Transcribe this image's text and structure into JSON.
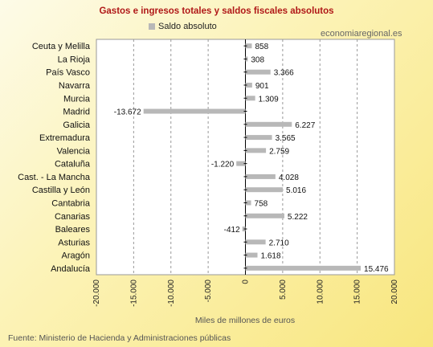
{
  "chart_data": {
    "type": "bar",
    "orientation": "horizontal",
    "title": "Gastos e ingresos totales y saldos fiscales absolutos",
    "xlabel": "Miles de millones de euros",
    "categories": [
      "Ceuta y Melilla",
      "La Rioja",
      "País Vasco",
      "Navarra",
      "Murcia",
      "Madrid",
      "Galicia",
      "Extremadura",
      "Valencia",
      "Cataluña",
      "Cast. - La Mancha",
      "Castilla y León",
      "Cantabria",
      "Canarias",
      "Baleares",
      "Asturias",
      "Aragón",
      "Andalucía"
    ],
    "series": [
      {
        "name": "Saldo absoluto",
        "color": "#b8b8b8",
        "values": [
          858,
          308,
          3366,
          901,
          1309,
          -13672,
          6227,
          3565,
          2759,
          -1220,
          4028,
          5016,
          758,
          5222,
          -412,
          2710,
          1618,
          15476
        ],
        "labels": [
          "858",
          "308",
          "3.366",
          "901",
          "1.309",
          "-13.672",
          "6.227",
          "3.565",
          "2.759",
          "-1.220",
          "4.028",
          "5.016",
          "758",
          "5.222",
          "-412",
          "2.710",
          "1.618",
          "15.476"
        ]
      }
    ],
    "xlim": [
      -20000,
      20000
    ],
    "ticks": [
      -20000,
      -15000,
      -10000,
      -5000,
      0,
      5000,
      10000,
      15000,
      20000
    ],
    "tick_labels": [
      "-20.000",
      "-15.000",
      "-10.000",
      "-5.000",
      "0",
      "5.000",
      "10.000",
      "15.000",
      "20.000"
    ],
    "grid": true,
    "legend_position": "top"
  },
  "watermark": "economiaregional.es",
  "source": "Fuente: Ministerio de Hacienda y Administraciones públicas"
}
